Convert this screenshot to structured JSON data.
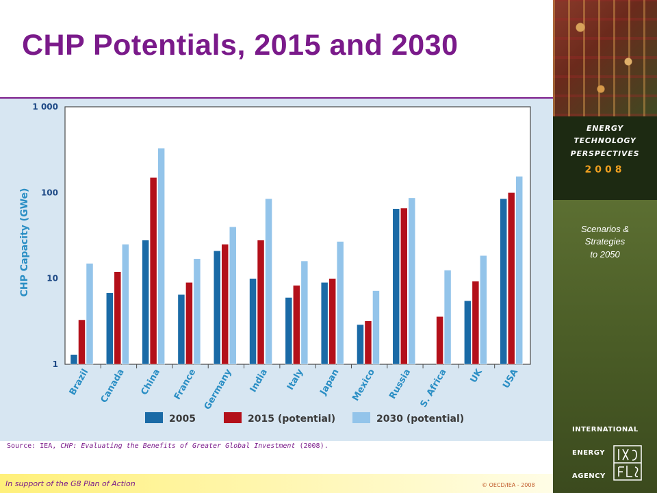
{
  "title": "CHP Potentials, 2015 and 2030",
  "source": {
    "prefix": "Source: IEA, ",
    "publication": "CHP: Evaluating the Benefits of Greater Global Investment",
    "suffix": " (2008)."
  },
  "footer": {
    "left": "In support of the G8 Plan of Action",
    "right": "© OECD/IEA - 2008"
  },
  "sidebar": {
    "line1": "ENERGY",
    "line2": "TECHNOLOGY",
    "line3": "PERSPECTIVES",
    "year": "2008",
    "sub1": "Scenarios &",
    "sub2": "Strategies",
    "sub3": "to 2050",
    "iea1": "INTERNATIONAL",
    "iea2": "ENERGY",
    "iea3": "AGENCY"
  },
  "colors": {
    "title": "#7a1a8a",
    "series_2005": "#1a6aa6",
    "series_2015": "#b3101a",
    "series_2030": "#93c4ea",
    "panel": "#d7e6f2"
  },
  "chart_data": {
    "type": "bar",
    "ylabel": "CHP Capacity (GWe)",
    "yscale": "log",
    "ylim": [
      1,
      1000
    ],
    "yticks": [
      {
        "value": 1,
        "label": "1"
      },
      {
        "value": 10,
        "label": "10"
      },
      {
        "value": 100,
        "label": "100"
      },
      {
        "value": 1000,
        "label": "1 000"
      }
    ],
    "grid": "dotted horizontal at 10 and 100",
    "legend_position": "bottom",
    "categories": [
      "Brazil",
      "Canada",
      "China",
      "France",
      "Germany",
      "India",
      "Italy",
      "Japan",
      "Mexico",
      "Russia",
      "S. Africa",
      "UK",
      "USA"
    ],
    "series": [
      {
        "name": "2005",
        "values": [
          1.3,
          6.8,
          28,
          6.5,
          21,
          10,
          6,
          9,
          2.9,
          65,
          null,
          5.5,
          85
        ]
      },
      {
        "name": "2015 (potential)",
        "values": [
          3.3,
          12,
          150,
          9,
          25,
          28,
          8.3,
          10,
          3.2,
          66,
          3.6,
          9.3,
          100
        ]
      },
      {
        "name": "2030 (potential)",
        "values": [
          15,
          25,
          330,
          17,
          40,
          85,
          16,
          27,
          7.2,
          87,
          12.5,
          18.5,
          155
        ]
      }
    ]
  }
}
